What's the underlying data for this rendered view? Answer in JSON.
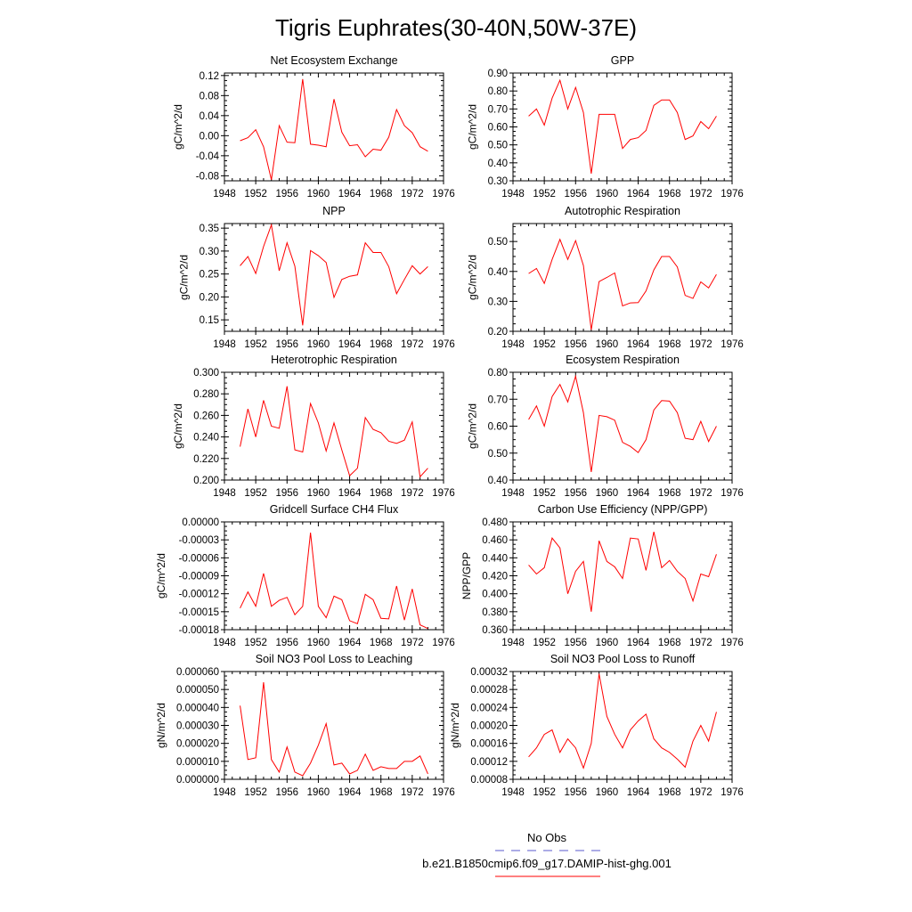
{
  "figure_title": "Tigris Euphrates(30-40N,50W-37E)",
  "legend": {
    "entries": [
      {
        "label": "No Obs",
        "color": "#5a5acd",
        "style": "dashed"
      },
      {
        "label": "b.e21.B1850cmip6.f09_g17.DAMIP-hist-ghg.001",
        "color": "#ff0000",
        "style": "solid"
      }
    ]
  },
  "chart_data": [
    {
      "type": "line",
      "title": "Net Ecosystem Exchange",
      "ylabel": "gC/m^2/d",
      "xlim": [
        1948,
        1976
      ],
      "ylim": [
        -0.09,
        0.125
      ],
      "xticks": [
        "1948",
        "1952",
        "1956",
        "1960",
        "1964",
        "1968",
        "1972",
        "1976"
      ],
      "yticks": [
        "0.12",
        "0.08",
        "0.04",
        "0.00",
        "-0.04",
        "-0.08"
      ],
      "ytick_values": [
        0.12,
        0.08,
        0.04,
        0.0,
        -0.04,
        -0.08
      ],
      "x": [
        1950,
        1951,
        1952,
        1953,
        1954,
        1955,
        1956,
        1957,
        1958,
        1959,
        1960,
        1961,
        1962,
        1963,
        1964,
        1965,
        1966,
        1967,
        1968,
        1969,
        1970,
        1971,
        1972,
        1973,
        1974
      ],
      "series": [
        {
          "color": "#ff0000",
          "values": [
            -0.01,
            -0.004,
            0.012,
            -0.022,
            -0.088,
            0.02,
            -0.013,
            -0.014,
            0.113,
            -0.017,
            -0.019,
            -0.022,
            0.073,
            0.007,
            -0.02,
            -0.018,
            -0.042,
            -0.027,
            -0.029,
            -0.003,
            0.052,
            0.02,
            0.006,
            -0.022,
            -0.031
          ]
        }
      ]
    },
    {
      "type": "line",
      "title": "GPP",
      "ylabel": "gC/m^2/d",
      "xlim": [
        1948,
        1976
      ],
      "ylim": [
        0.3,
        0.9
      ],
      "xticks": [
        "1948",
        "1952",
        "1956",
        "1960",
        "1964",
        "1968",
        "1972",
        "1976"
      ],
      "yticks": [
        "0.90",
        "0.80",
        "0.70",
        "0.60",
        "0.50",
        "0.40",
        "0.30"
      ],
      "ytick_values": [
        0.9,
        0.8,
        0.7,
        0.6,
        0.5,
        0.4,
        0.3
      ],
      "x": [
        1950,
        1951,
        1952,
        1953,
        1954,
        1955,
        1956,
        1957,
        1958,
        1959,
        1960,
        1961,
        1962,
        1963,
        1964,
        1965,
        1966,
        1967,
        1968,
        1969,
        1970,
        1971,
        1972,
        1973,
        1974
      ],
      "series": [
        {
          "color": "#ff0000",
          "values": [
            0.66,
            0.7,
            0.61,
            0.76,
            0.86,
            0.7,
            0.82,
            0.68,
            0.34,
            0.67,
            0.67,
            0.67,
            0.48,
            0.53,
            0.54,
            0.58,
            0.72,
            0.75,
            0.75,
            0.68,
            0.53,
            0.55,
            0.63,
            0.59,
            0.66
          ]
        }
      ]
    },
    {
      "type": "line",
      "title": "NPP",
      "ylabel": "gC/m^2/d",
      "xlim": [
        1948,
        1976
      ],
      "ylim": [
        0.125,
        0.36
      ],
      "xticks": [
        "1948",
        "1952",
        "1956",
        "1960",
        "1964",
        "1968",
        "1972",
        "1976"
      ],
      "yticks": [
        "0.35",
        "0.30",
        "0.25",
        "0.20",
        "0.15"
      ],
      "ytick_values": [
        0.35,
        0.3,
        0.25,
        0.2,
        0.15
      ],
      "x": [
        1950,
        1951,
        1952,
        1953,
        1954,
        1955,
        1956,
        1957,
        1958,
        1959,
        1960,
        1961,
        1962,
        1963,
        1964,
        1965,
        1966,
        1967,
        1968,
        1969,
        1970,
        1971,
        1972,
        1973,
        1974
      ],
      "series": [
        {
          "color": "#ff0000",
          "values": [
            0.268,
            0.288,
            0.251,
            0.31,
            0.357,
            0.257,
            0.318,
            0.267,
            0.138,
            0.301,
            0.29,
            0.275,
            0.199,
            0.238,
            0.245,
            0.248,
            0.318,
            0.297,
            0.297,
            0.266,
            0.207,
            0.238,
            0.268,
            0.25,
            0.266
          ]
        }
      ]
    },
    {
      "type": "line",
      "title": "Autotrophic Respiration",
      "ylabel": "gC/m^2/d",
      "xlim": [
        1948,
        1976
      ],
      "ylim": [
        0.2,
        0.56
      ],
      "xticks": [
        "1948",
        "1952",
        "1956",
        "1960",
        "1964",
        "1968",
        "1972",
        "1976"
      ],
      "yticks": [
        "0.50",
        "0.40",
        "0.30",
        "0.20"
      ],
      "ytick_values": [
        0.5,
        0.4,
        0.3,
        0.2
      ],
      "x": [
        1950,
        1951,
        1952,
        1953,
        1954,
        1955,
        1956,
        1957,
        1958,
        1959,
        1960,
        1961,
        1962,
        1963,
        1964,
        1965,
        1966,
        1967,
        1968,
        1969,
        1970,
        1971,
        1972,
        1973,
        1974
      ],
      "series": [
        {
          "color": "#ff0000",
          "values": [
            0.393,
            0.41,
            0.36,
            0.44,
            0.507,
            0.44,
            0.503,
            0.42,
            0.205,
            0.366,
            0.38,
            0.395,
            0.285,
            0.295,
            0.296,
            0.335,
            0.405,
            0.45,
            0.45,
            0.415,
            0.32,
            0.31,
            0.365,
            0.345,
            0.39
          ]
        }
      ]
    },
    {
      "type": "line",
      "title": "Heterotrophic Respiration",
      "ylabel": "gC/m^2/d",
      "xlim": [
        1948,
        1976
      ],
      "ylim": [
        0.2,
        0.3
      ],
      "xticks": [
        "1948",
        "1952",
        "1956",
        "1960",
        "1964",
        "1968",
        "1972",
        "1976"
      ],
      "yticks": [
        "0.300",
        "0.280",
        "0.260",
        "0.240",
        "0.220",
        "0.200"
      ],
      "ytick_values": [
        0.3,
        0.28,
        0.26,
        0.24,
        0.22,
        0.2
      ],
      "x": [
        1950,
        1951,
        1952,
        1953,
        1954,
        1955,
        1956,
        1957,
        1958,
        1959,
        1960,
        1961,
        1962,
        1963,
        1964,
        1965,
        1966,
        1967,
        1968,
        1969,
        1970,
        1971,
        1972,
        1973,
        1974
      ],
      "series": [
        {
          "color": "#ff0000",
          "values": [
            0.231,
            0.266,
            0.24,
            0.274,
            0.25,
            0.248,
            0.287,
            0.228,
            0.226,
            0.271,
            0.253,
            0.227,
            0.253,
            0.228,
            0.204,
            0.211,
            0.258,
            0.247,
            0.244,
            0.236,
            0.234,
            0.237,
            0.254,
            0.203,
            0.211
          ]
        }
      ]
    },
    {
      "type": "line",
      "title": "Ecosystem Respiration",
      "ylabel": "gC/m^2/d",
      "xlim": [
        1948,
        1976
      ],
      "ylim": [
        0.4,
        0.8
      ],
      "xticks": [
        "1948",
        "1952",
        "1956",
        "1960",
        "1964",
        "1968",
        "1972",
        "1976"
      ],
      "yticks": [
        "0.80",
        "0.70",
        "0.60",
        "0.50",
        "0.40"
      ],
      "ytick_values": [
        0.8,
        0.7,
        0.6,
        0.5,
        0.4
      ],
      "x": [
        1950,
        1951,
        1952,
        1953,
        1954,
        1955,
        1956,
        1957,
        1958,
        1959,
        1960,
        1961,
        1962,
        1963,
        1964,
        1965,
        1966,
        1967,
        1968,
        1969,
        1970,
        1971,
        1972,
        1973,
        1974
      ],
      "series": [
        {
          "color": "#ff0000",
          "values": [
            0.625,
            0.675,
            0.6,
            0.71,
            0.755,
            0.69,
            0.785,
            0.65,
            0.43,
            0.64,
            0.635,
            0.622,
            0.54,
            0.525,
            0.502,
            0.55,
            0.66,
            0.695,
            0.693,
            0.65,
            0.555,
            0.55,
            0.618,
            0.543,
            0.6
          ]
        }
      ]
    },
    {
      "type": "line",
      "title": "Gridcell Surface CH4 Flux",
      "ylabel": "gC/m^2/d",
      "xlim": [
        1948,
        1976
      ],
      "ylim": [
        -0.00018,
        0.0
      ],
      "xticks": [
        "1948",
        "1952",
        "1956",
        "1960",
        "1964",
        "1968",
        "1972",
        "1976"
      ],
      "yticks": [
        "0.00000",
        "-0.00003",
        "-0.00006",
        "-0.00009",
        "-0.00012",
        "-0.00015",
        "-0.00018"
      ],
      "ytick_values": [
        0.0,
        -3e-05,
        -6e-05,
        -9e-05,
        -0.00012,
        -0.00015,
        -0.00018
      ],
      "x": [
        1950,
        1951,
        1952,
        1953,
        1954,
        1955,
        1956,
        1957,
        1958,
        1959,
        1960,
        1961,
        1962,
        1963,
        1964,
        1965,
        1966,
        1967,
        1968,
        1969,
        1970,
        1971,
        1972,
        1973,
        1974
      ],
      "series": [
        {
          "color": "#ff0000",
          "values": [
            -0.000144,
            -0.000117,
            -0.000141,
            -8.6e-05,
            -0.000141,
            -0.000131,
            -0.000126,
            -0.000155,
            -0.000141,
            -1.8e-05,
            -0.000141,
            -0.00016,
            -0.000124,
            -0.00013,
            -0.000165,
            -0.00017,
            -0.000121,
            -0.00013,
            -0.000161,
            -0.000162,
            -0.000107,
            -0.000164,
            -0.000112,
            -0.000172,
            -0.000178
          ]
        }
      ]
    },
    {
      "type": "line",
      "title": "Carbon Use Efficiency (NPP/GPP)",
      "ylabel": "NPP/GPP",
      "xlim": [
        1948,
        1976
      ],
      "ylim": [
        0.36,
        0.48
      ],
      "xticks": [
        "1948",
        "1952",
        "1956",
        "1960",
        "1964",
        "1968",
        "1972",
        "1976"
      ],
      "yticks": [
        "0.480",
        "0.460",
        "0.440",
        "0.420",
        "0.400",
        "0.380",
        "0.360"
      ],
      "ytick_values": [
        0.48,
        0.46,
        0.44,
        0.42,
        0.4,
        0.38,
        0.36
      ],
      "x": [
        1950,
        1951,
        1952,
        1953,
        1954,
        1955,
        1956,
        1957,
        1958,
        1959,
        1960,
        1961,
        1962,
        1963,
        1964,
        1965,
        1966,
        1967,
        1968,
        1969,
        1970,
        1971,
        1972,
        1973,
        1974
      ],
      "series": [
        {
          "color": "#ff0000",
          "values": [
            0.432,
            0.422,
            0.429,
            0.462,
            0.451,
            0.4,
            0.425,
            0.436,
            0.38,
            0.459,
            0.436,
            0.43,
            0.417,
            0.462,
            0.461,
            0.426,
            0.469,
            0.429,
            0.437,
            0.425,
            0.417,
            0.392,
            0.422,
            0.419,
            0.444
          ]
        }
      ]
    },
    {
      "type": "line",
      "title": "Soil NO3 Pool Loss to Leaching",
      "ylabel": "gN/m^2/d",
      "xlim": [
        1948,
        1976
      ],
      "ylim": [
        0.0,
        6e-05
      ],
      "xticks": [
        "1948",
        "1952",
        "1956",
        "1960",
        "1964",
        "1968",
        "1972",
        "1976"
      ],
      "yticks": [
        "0.000060",
        "0.000050",
        "0.000040",
        "0.000030",
        "0.000020",
        "0.000010",
        "0.000000"
      ],
      "ytick_values": [
        6e-05,
        5e-05,
        4e-05,
        3e-05,
        2e-05,
        1e-05,
        0.0
      ],
      "x": [
        1950,
        1951,
        1952,
        1953,
        1954,
        1955,
        1956,
        1957,
        1958,
        1959,
        1960,
        1961,
        1962,
        1963,
        1964,
        1965,
        1966,
        1967,
        1968,
        1969,
        1970,
        1971,
        1972,
        1973,
        1974
      ],
      "series": [
        {
          "color": "#ff0000",
          "values": [
            4.1e-05,
            1.1e-05,
            1.2e-05,
            5.4e-05,
            1.1e-05,
            4e-06,
            1.8e-05,
            4e-06,
            2e-06,
            9e-06,
            1.9e-05,
            3.1e-05,
            8e-06,
            9e-06,
            3e-06,
            5e-06,
            1.4e-05,
            5e-06,
            7e-06,
            6e-06,
            6e-06,
            1e-05,
            1e-05,
            1.3e-05,
            3e-06
          ]
        }
      ]
    },
    {
      "type": "line",
      "title": "Soil NO3 Pool Loss to Runoff",
      "ylabel": "gN/m^2/d",
      "xlim": [
        1948,
        1976
      ],
      "ylim": [
        8e-05,
        0.00032
      ],
      "xticks": [
        "1948",
        "1952",
        "1956",
        "1960",
        "1964",
        "1968",
        "1972",
        "1976"
      ],
      "yticks": [
        "0.00032",
        "0.00028",
        "0.00024",
        "0.00020",
        "0.00016",
        "0.00012",
        "0.00008"
      ],
      "ytick_values": [
        0.00032,
        0.00028,
        0.00024,
        0.0002,
        0.00016,
        0.00012,
        8e-05
      ],
      "x": [
        1950,
        1951,
        1952,
        1953,
        1954,
        1955,
        1956,
        1957,
        1958,
        1959,
        1960,
        1961,
        1962,
        1963,
        1964,
        1965,
        1966,
        1967,
        1968,
        1969,
        1970,
        1971,
        1972,
        1973,
        1974
      ],
      "series": [
        {
          "color": "#ff0000",
          "values": [
            0.00013,
            0.00015,
            0.00018,
            0.00019,
            0.00014,
            0.00017,
            0.00015,
            0.000105,
            0.00016,
            0.000315,
            0.00022,
            0.00018,
            0.00015,
            0.00019,
            0.00021,
            0.000225,
            0.00017,
            0.00015,
            0.00014,
            0.000125,
            0.000107,
            0.000165,
            0.0002,
            0.000165,
            0.00023
          ]
        }
      ]
    }
  ]
}
